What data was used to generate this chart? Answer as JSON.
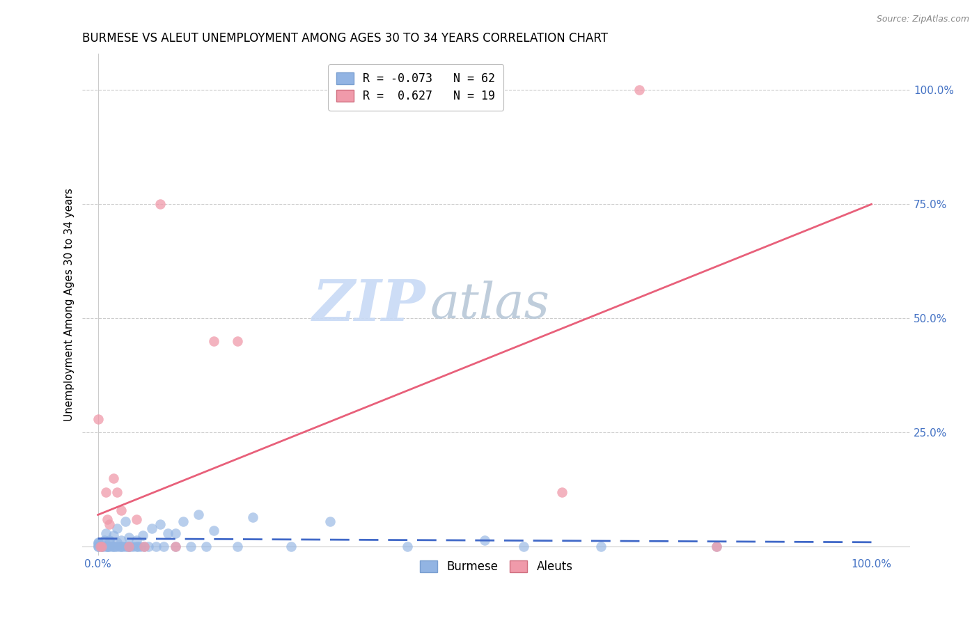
{
  "title": "BURMESE VS ALEUT UNEMPLOYMENT AMONG AGES 30 TO 34 YEARS CORRELATION CHART",
  "source": "Source: ZipAtlas.com",
  "ylabel": "Unemployment Among Ages 30 to 34 years",
  "xlim": [
    -0.02,
    1.05
  ],
  "ylim": [
    -0.02,
    1.08
  ],
  "xtick_positions": [
    0.0,
    1.0
  ],
  "xtick_labels": [
    "0.0%",
    "100.0%"
  ],
  "ytick_positions": [
    0.25,
    0.5,
    0.75,
    1.0
  ],
  "ytick_labels": [
    "25.0%",
    "50.0%",
    "75.0%",
    "100.0%"
  ],
  "burmese_x": [
    0.0,
    0.0,
    0.0,
    0.0,
    0.0,
    0.005,
    0.005,
    0.007,
    0.008,
    0.01,
    0.01,
    0.012,
    0.013,
    0.015,
    0.015,
    0.015,
    0.018,
    0.02,
    0.02,
    0.022,
    0.025,
    0.025,
    0.025,
    0.028,
    0.03,
    0.03,
    0.032,
    0.035,
    0.035,
    0.038,
    0.04,
    0.04,
    0.042,
    0.045,
    0.05,
    0.05,
    0.052,
    0.055,
    0.058,
    0.06,
    0.065,
    0.07,
    0.075,
    0.08,
    0.085,
    0.09,
    0.1,
    0.1,
    0.11,
    0.12,
    0.13,
    0.14,
    0.15,
    0.18,
    0.2,
    0.25,
    0.3,
    0.4,
    0.5,
    0.55,
    0.65,
    0.8
  ],
  "burmese_y": [
    0.0,
    0.0,
    0.005,
    0.008,
    0.01,
    0.0,
    0.005,
    0.0,
    0.015,
    0.0,
    0.03,
    0.0,
    0.0,
    0.0,
    0.008,
    0.015,
    0.0,
    0.0,
    0.025,
    0.0,
    0.0,
    0.01,
    0.04,
    0.0,
    0.0,
    0.015,
    0.0,
    0.0,
    0.055,
    0.0,
    0.0,
    0.02,
    0.0,
    0.0,
    0.0,
    0.015,
    0.0,
    0.0,
    0.025,
    0.0,
    0.0,
    0.04,
    0.0,
    0.05,
    0.0,
    0.03,
    0.0,
    0.03,
    0.055,
    0.0,
    0.07,
    0.0,
    0.035,
    0.0,
    0.065,
    0.0,
    0.055,
    0.0,
    0.015,
    0.0,
    0.0,
    0.0
  ],
  "aleut_x": [
    0.0,
    0.003,
    0.005,
    0.01,
    0.012,
    0.015,
    0.02,
    0.025,
    0.03,
    0.04,
    0.05,
    0.06,
    0.08,
    0.1,
    0.15,
    0.18,
    0.6,
    0.7,
    0.8
  ],
  "aleut_y": [
    0.28,
    0.0,
    0.0,
    0.12,
    0.06,
    0.05,
    0.15,
    0.12,
    0.08,
    0.0,
    0.06,
    0.0,
    0.75,
    0.0,
    0.45,
    0.45,
    0.12,
    1.0,
    0.0
  ],
  "burmese_color": "#92b4e3",
  "aleut_color": "#f09aaa",
  "burmese_line_color": "#4169c8",
  "burmese_line_dash": [
    10,
    5
  ],
  "aleut_line_color": "#e8607a",
  "aleut_line_x0": 0.0,
  "aleut_line_y0": 0.07,
  "aleut_line_x1": 1.0,
  "aleut_line_y1": 0.75,
  "burmese_line_x0": 0.0,
  "burmese_line_y0": 0.018,
  "burmese_line_x1": 1.0,
  "burmese_line_y1": 0.01,
  "grid_color": "#cccccc",
  "title_fontsize": 12,
  "label_fontsize": 11,
  "tick_fontsize": 11,
  "source_fontsize": 9,
  "legend_fontsize": 12,
  "watermark_zip_color": "#c8daf5",
  "watermark_atlas_color": "#b8c8d8",
  "watermark_fontsize": 60
}
